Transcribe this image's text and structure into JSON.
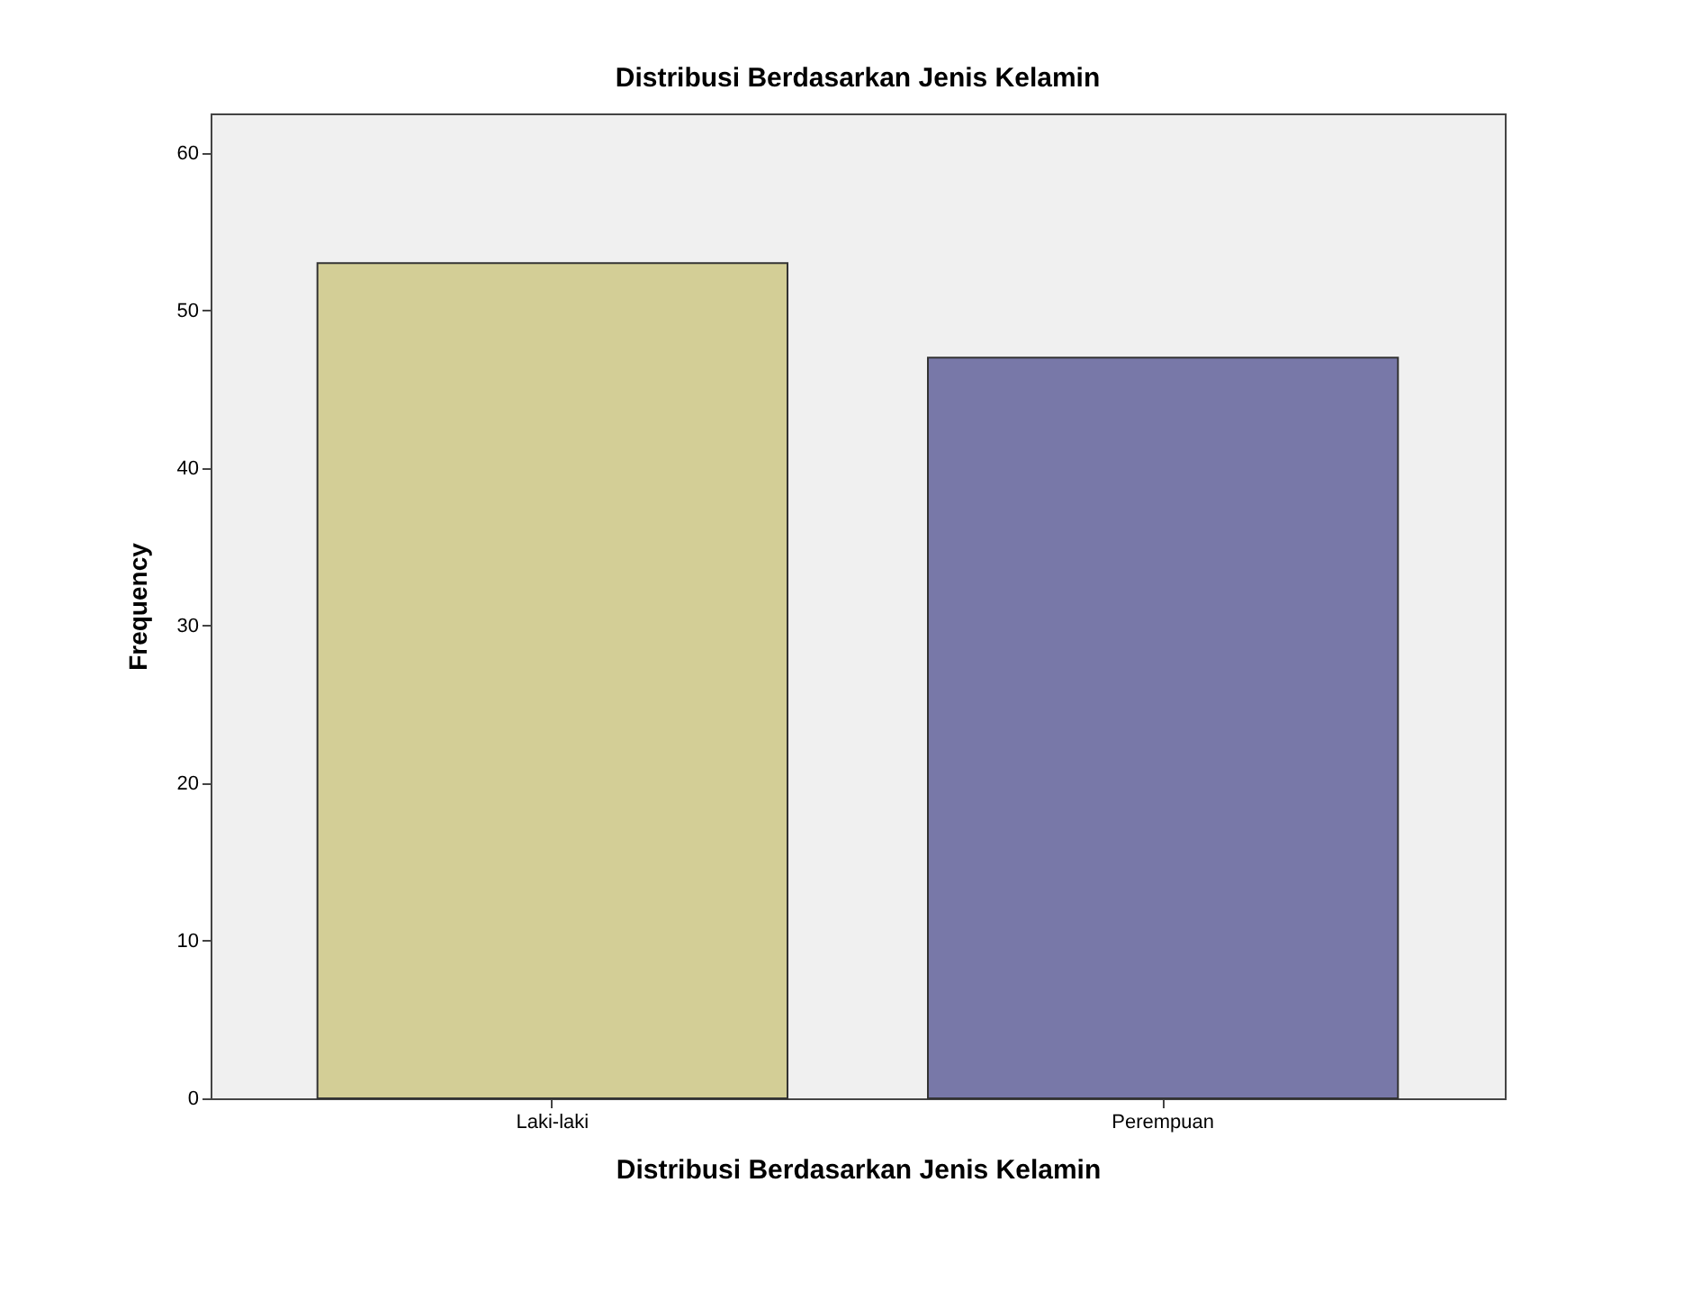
{
  "chart_data": {
    "type": "bar",
    "title": "Distribusi Berdasarkan  Jenis Kelamin",
    "xlabel": "Distribusi Berdasarkan  Jenis Kelamin",
    "ylabel": "Frequency",
    "categories": [
      "Laki-laki",
      "Perempuan"
    ],
    "values": [
      53,
      47
    ],
    "colors": [
      "#d3ce96",
      "#7878a8"
    ],
    "ylim": [
      0,
      62.5
    ],
    "yticks": [
      0,
      10,
      20,
      30,
      40,
      50,
      60
    ],
    "grid": false,
    "legend": false
  }
}
